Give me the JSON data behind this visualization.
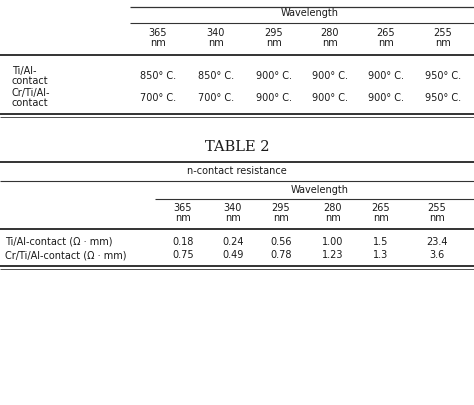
{
  "table1_subtitle": "Wavelength",
  "table1_col_headers": [
    "365",
    "340",
    "295",
    "280",
    "265",
    "255"
  ],
  "table1_col_sub": [
    "nm",
    "nm",
    "nm",
    "nm",
    "nm",
    "nm"
  ],
  "table1_row1_lines": [
    "Ti/Al-",
    "contact"
  ],
  "table1_row2_lines": [
    "Cr/Ti/Al-",
    "contact"
  ],
  "table1_data": [
    [
      "850° C.",
      "850° C.",
      "900° C.",
      "900° C.",
      "900° C.",
      "950° C."
    ],
    [
      "700° C.",
      "700° C.",
      "900° C.",
      "900° C.",
      "900° C.",
      "950° C."
    ]
  ],
  "table2_title": "TABLE 2",
  "table2_subtitle": "n-contact resistance",
  "table2_wavelength_label": "Wavelength",
  "table2_col_headers": [
    "365",
    "340",
    "295",
    "280",
    "265",
    "255"
  ],
  "table2_col_sub": [
    "nm",
    "nm",
    "nm",
    "nm",
    "nm",
    "nm"
  ],
  "table2_row_headers": [
    "Ti/Al-contact (Ω · mm)",
    "Cr/Ti/Al-contact (Ω · mm)"
  ],
  "table2_data": [
    [
      "0.18",
      "0.24",
      "0.56",
      "1.00",
      "1.5",
      "23.4"
    ],
    [
      "0.75",
      "0.49",
      "0.78",
      "1.23",
      "1.3",
      "3.6"
    ]
  ],
  "bg_color": "#ffffff",
  "text_color": "#1a1a1a",
  "line_color": "#333333",
  "font_size": 7.0,
  "title_font_size": 10.5
}
